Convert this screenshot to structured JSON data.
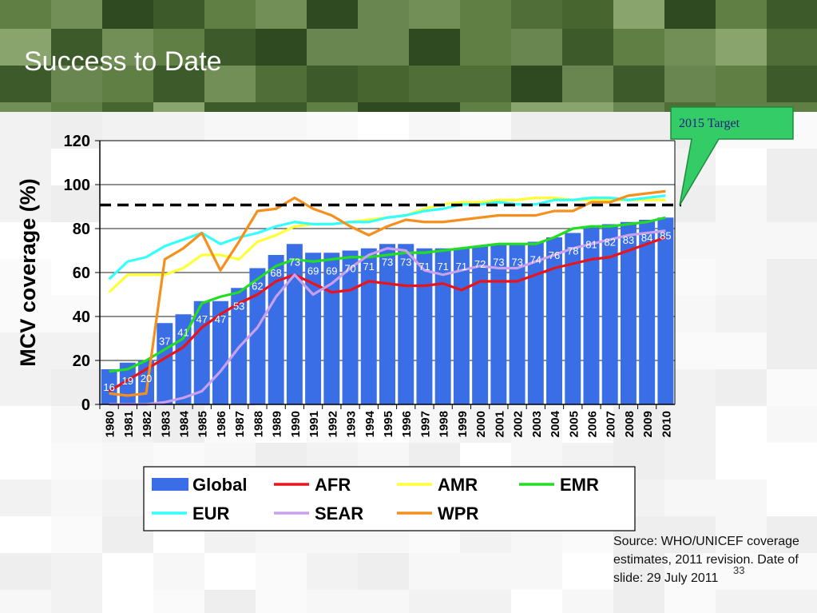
{
  "slide": {
    "title": "Success to Date",
    "source": "Source: WHO/UNICEF coverage estimates, 2011 revision. Date of slide: 29 July 2011",
    "slide_number": "33",
    "colors": {
      "header_dark": "#3d5a2a",
      "callout_fill": "#33cc66",
      "callout_border": "#1f8a3e",
      "target_line": "#000000"
    }
  },
  "chart_data": {
    "type": "bar",
    "title": "",
    "xlabel": "",
    "ylabel": "MCV coverage (%)",
    "ylim": [
      0,
      120
    ],
    "yticks": [
      0,
      20,
      40,
      60,
      80,
      100,
      120
    ],
    "grid": "horizontal",
    "legend_position": "bottom",
    "target_annotation": {
      "label": "2015 Target",
      "value": 90
    },
    "categories": [
      "1980",
      "1981",
      "1982",
      "1983",
      "1984",
      "1985",
      "1986",
      "1987",
      "1988",
      "1989",
      "1990",
      "1991",
      "1992",
      "1993",
      "1994",
      "1995",
      "1996",
      "1997",
      "1998",
      "1999",
      "2000",
      "2001",
      "2002",
      "2003",
      "2004",
      "2005",
      "2006",
      "2007",
      "2008",
      "2009",
      "2010"
    ],
    "series": [
      {
        "name": "Global",
        "kind": "bar",
        "color": "#3a6ee6",
        "values": [
          16,
          19,
          20,
          37,
          41,
          47,
          47,
          53,
          62,
          68,
          73,
          69,
          69,
          70,
          71,
          73,
          73,
          71,
          71,
          71,
          72,
          73,
          73,
          74,
          76,
          78,
          81,
          82,
          83,
          84,
          85
        ]
      },
      {
        "name": "AFR",
        "kind": "line",
        "color": "#e8141a",
        "values": [
          6,
          11,
          16,
          21,
          26,
          35,
          41,
          46,
          50,
          56,
          59,
          55,
          51,
          52,
          56,
          55,
          54,
          54,
          55,
          52,
          56,
          56,
          56,
          59,
          62,
          64,
          66,
          67,
          70,
          73,
          76
        ]
      },
      {
        "name": "AMR",
        "kind": "line",
        "color": "#ffff33",
        "values": [
          51,
          59,
          59,
          59,
          62,
          68,
          68,
          66,
          74,
          77,
          81,
          82,
          82,
          83,
          84,
          85,
          86,
          89,
          91,
          92,
          92,
          93,
          93,
          94,
          94,
          93,
          93,
          93,
          93,
          93,
          93
        ]
      },
      {
        "name": "EMR",
        "kind": "line",
        "color": "#22dd22",
        "values": [
          15,
          16,
          20,
          25,
          30,
          46,
          49,
          51,
          57,
          63,
          66,
          65,
          66,
          67,
          67,
          68,
          69,
          69,
          70,
          71,
          72,
          73,
          73,
          73,
          76,
          80,
          81,
          81,
          82,
          83,
          85
        ]
      },
      {
        "name": "EUR",
        "kind": "line",
        "color": "#33ffff",
        "values": [
          57,
          65,
          67,
          72,
          75,
          78,
          73,
          76,
          78,
          81,
          83,
          82,
          82,
          83,
          83,
          85,
          86,
          88,
          89,
          91,
          91,
          92,
          91,
          91,
          93,
          93,
          94,
          94,
          93,
          94,
          95
        ]
      },
      {
        "name": "SEAR",
        "kind": "line",
        "color": "#c9a0ee",
        "values": [
          0,
          0,
          0,
          1,
          3,
          6,
          15,
          26,
          35,
          49,
          59,
          50,
          55,
          62,
          68,
          71,
          70,
          61,
          59,
          61,
          63,
          62,
          62,
          65,
          68,
          71,
          73,
          75,
          77,
          78,
          79
        ]
      },
      {
        "name": "WPR",
        "kind": "line",
        "color": "#f5901e",
        "values": [
          5,
          4,
          5,
          66,
          71,
          78,
          61,
          74,
          88,
          89,
          94,
          89,
          86,
          81,
          77,
          81,
          84,
          83,
          83,
          84,
          85,
          86,
          86,
          86,
          88,
          88,
          92,
          92,
          95,
          96,
          97
        ]
      }
    ]
  }
}
